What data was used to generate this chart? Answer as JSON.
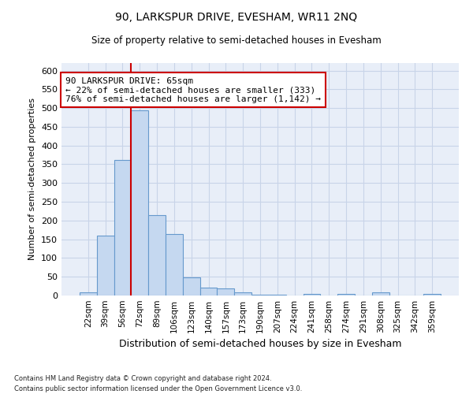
{
  "title1": "90, LARKSPUR DRIVE, EVESHAM, WR11 2NQ",
  "title2": "Size of property relative to semi-detached houses in Evesham",
  "xlabel": "Distribution of semi-detached houses by size in Evesham",
  "ylabel": "Number of semi-detached properties",
  "categories": [
    "22sqm",
    "39sqm",
    "56sqm",
    "72sqm",
    "89sqm",
    "106sqm",
    "123sqm",
    "140sqm",
    "157sqm",
    "173sqm",
    "190sqm",
    "207sqm",
    "224sqm",
    "241sqm",
    "258sqm",
    "274sqm",
    "291sqm",
    "308sqm",
    "325sqm",
    "342sqm",
    "359sqm"
  ],
  "values": [
    8,
    160,
    362,
    493,
    215,
    163,
    48,
    22,
    19,
    8,
    3,
    3,
    0,
    5,
    0,
    5,
    0,
    8,
    0,
    0,
    5
  ],
  "bar_color": "#c5d8f0",
  "bar_edge_color": "#6699cc",
  "grid_color": "#c8d4e8",
  "background_color": "#e8eef8",
  "vline_color": "#cc0000",
  "vline_x_index": 2.5,
  "annotation_title": "90 LARKSPUR DRIVE: 65sqm",
  "annotation_line1": "← 22% of semi-detached houses are smaller (333)",
  "annotation_line2": "76% of semi-detached houses are larger (1,142) →",
  "ann_box_edge_color": "#cc0000",
  "ylim": [
    0,
    620
  ],
  "yticks": [
    0,
    50,
    100,
    150,
    200,
    250,
    300,
    350,
    400,
    450,
    500,
    550,
    600
  ],
  "footnote1": "Contains HM Land Registry data © Crown copyright and database right 2024.",
  "footnote2": "Contains public sector information licensed under the Open Government Licence v3.0."
}
